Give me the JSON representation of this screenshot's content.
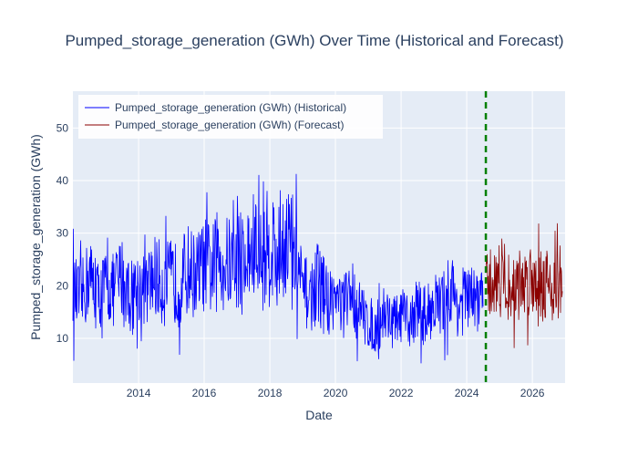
{
  "chart_data": {
    "type": "line",
    "title": "Pumped_storage_generation (GWh) Over Time (Historical and Forecast)",
    "xlabel": "Date",
    "ylabel": "Pumped_storage_generation (GWh)",
    "x_range": [
      "2012-01-01",
      "2026-12-31"
    ],
    "ylim": [
      1.5,
      57
    ],
    "x_ticks": [
      "2014",
      "2016",
      "2018",
      "2020",
      "2022",
      "2024",
      "2026"
    ],
    "y_ticks": [
      10,
      20,
      30,
      40,
      50
    ],
    "forecast_start": "2024-08-01",
    "legend_position": "top-left",
    "grid": true,
    "colors": {
      "plot_bg": "#e5ecf6",
      "grid": "#ffffff",
      "text": "#2a3f5f",
      "historical": "#0000ff",
      "forecast": "#8b0000",
      "divider": "#008000"
    },
    "series": [
      {
        "name": "Pumped_storage_generation (GWh) (Historical)",
        "color": "#0000ff",
        "x": [
          "2012-01",
          "2012-04",
          "2012-07",
          "2012-10",
          "2013-01",
          "2013-04",
          "2013-07",
          "2013-10",
          "2014-01",
          "2014-04",
          "2014-07",
          "2014-10",
          "2015-01",
          "2015-04",
          "2015-07",
          "2015-10",
          "2016-01",
          "2016-04",
          "2016-07",
          "2016-10",
          "2017-01",
          "2017-04",
          "2017-07",
          "2017-10",
          "2018-01",
          "2018-04",
          "2018-07",
          "2018-10",
          "2019-01",
          "2019-04",
          "2019-07",
          "2019-10",
          "2020-01",
          "2020-04",
          "2020-07",
          "2020-10",
          "2021-01",
          "2021-04",
          "2021-07",
          "2021-10",
          "2022-01",
          "2022-04",
          "2022-07",
          "2022-10",
          "2023-01",
          "2023-04",
          "2023-07",
          "2023-10",
          "2024-01",
          "2024-04",
          "2024-07"
        ],
        "y": [
          19,
          17,
          22,
          18,
          20,
          19,
          22,
          18,
          20,
          19,
          22,
          20,
          21,
          20,
          23,
          22,
          24,
          23,
          26,
          24,
          25,
          24,
          27,
          25,
          28,
          26,
          30,
          26,
          19,
          18,
          21,
          17,
          18,
          16,
          19,
          15,
          13,
          12,
          15,
          13,
          14,
          13,
          16,
          14,
          17,
          16,
          20,
          16,
          18,
          17,
          19
        ],
        "spread": [
          7,
          7,
          8,
          7,
          7,
          7,
          8,
          7,
          7,
          7,
          8,
          8,
          8,
          8,
          9,
          8,
          9,
          9,
          10,
          9,
          10,
          10,
          11,
          10,
          12,
          11,
          12,
          11,
          7,
          7,
          8,
          7,
          6,
          6,
          7,
          6,
          5,
          5,
          6,
          5,
          5,
          5,
          6,
          6,
          6,
          6,
          7,
          6,
          7,
          6,
          7
        ]
      },
      {
        "name": "Pumped_storage_generation (GWh) (Forecast)",
        "color": "#8b0000",
        "x": [
          "2024-08",
          "2024-11",
          "2025-02",
          "2025-05",
          "2025-08",
          "2025-11",
          "2026-02",
          "2026-05",
          "2026-08",
          "2026-11",
          "2026-12"
        ],
        "y": [
          20,
          21,
          22,
          19,
          20,
          21,
          22,
          21,
          20,
          21,
          21
        ],
        "spread": [
          6,
          7,
          8,
          6,
          7,
          7,
          8,
          7,
          7,
          7,
          7
        ]
      }
    ]
  }
}
